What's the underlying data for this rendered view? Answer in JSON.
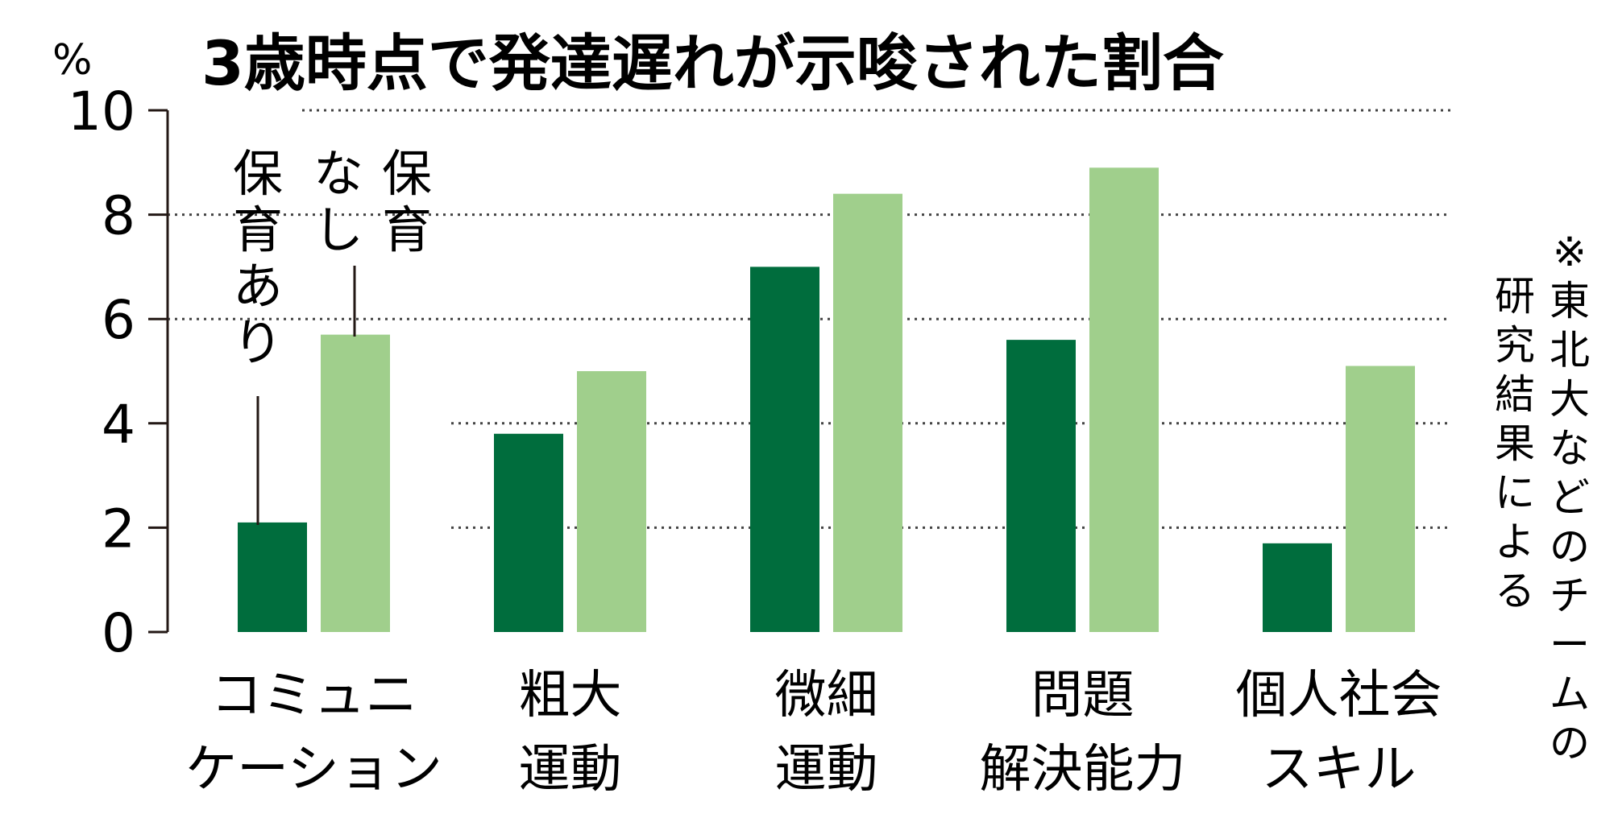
{
  "chart_data": {
    "type": "bar",
    "title": "3歳時点で発達遅れが示唆された割合",
    "y_unit": "%",
    "ylim": [
      0,
      10
    ],
    "yticks": [
      "0",
      "2",
      "4",
      "6",
      "8",
      "10"
    ],
    "grid": true,
    "categories": [
      [
        "コミュニ",
        "ケーション"
      ],
      [
        "粗大",
        "運動"
      ],
      [
        "微細",
        "運動"
      ],
      [
        "問題",
        "解決能力"
      ],
      [
        "個人社会",
        "スキル"
      ]
    ],
    "series": [
      {
        "name": "保育あり",
        "color": "#006d3d",
        "values": [
          2.1,
          3.8,
          7.0,
          5.6,
          1.7
        ]
      },
      {
        "name": "保育なし",
        "color": "#a0cf8c",
        "values": [
          5.7,
          5.0,
          8.4,
          8.9,
          5.1
        ]
      }
    ],
    "note": "※東北大などのチームの研究結果による"
  }
}
